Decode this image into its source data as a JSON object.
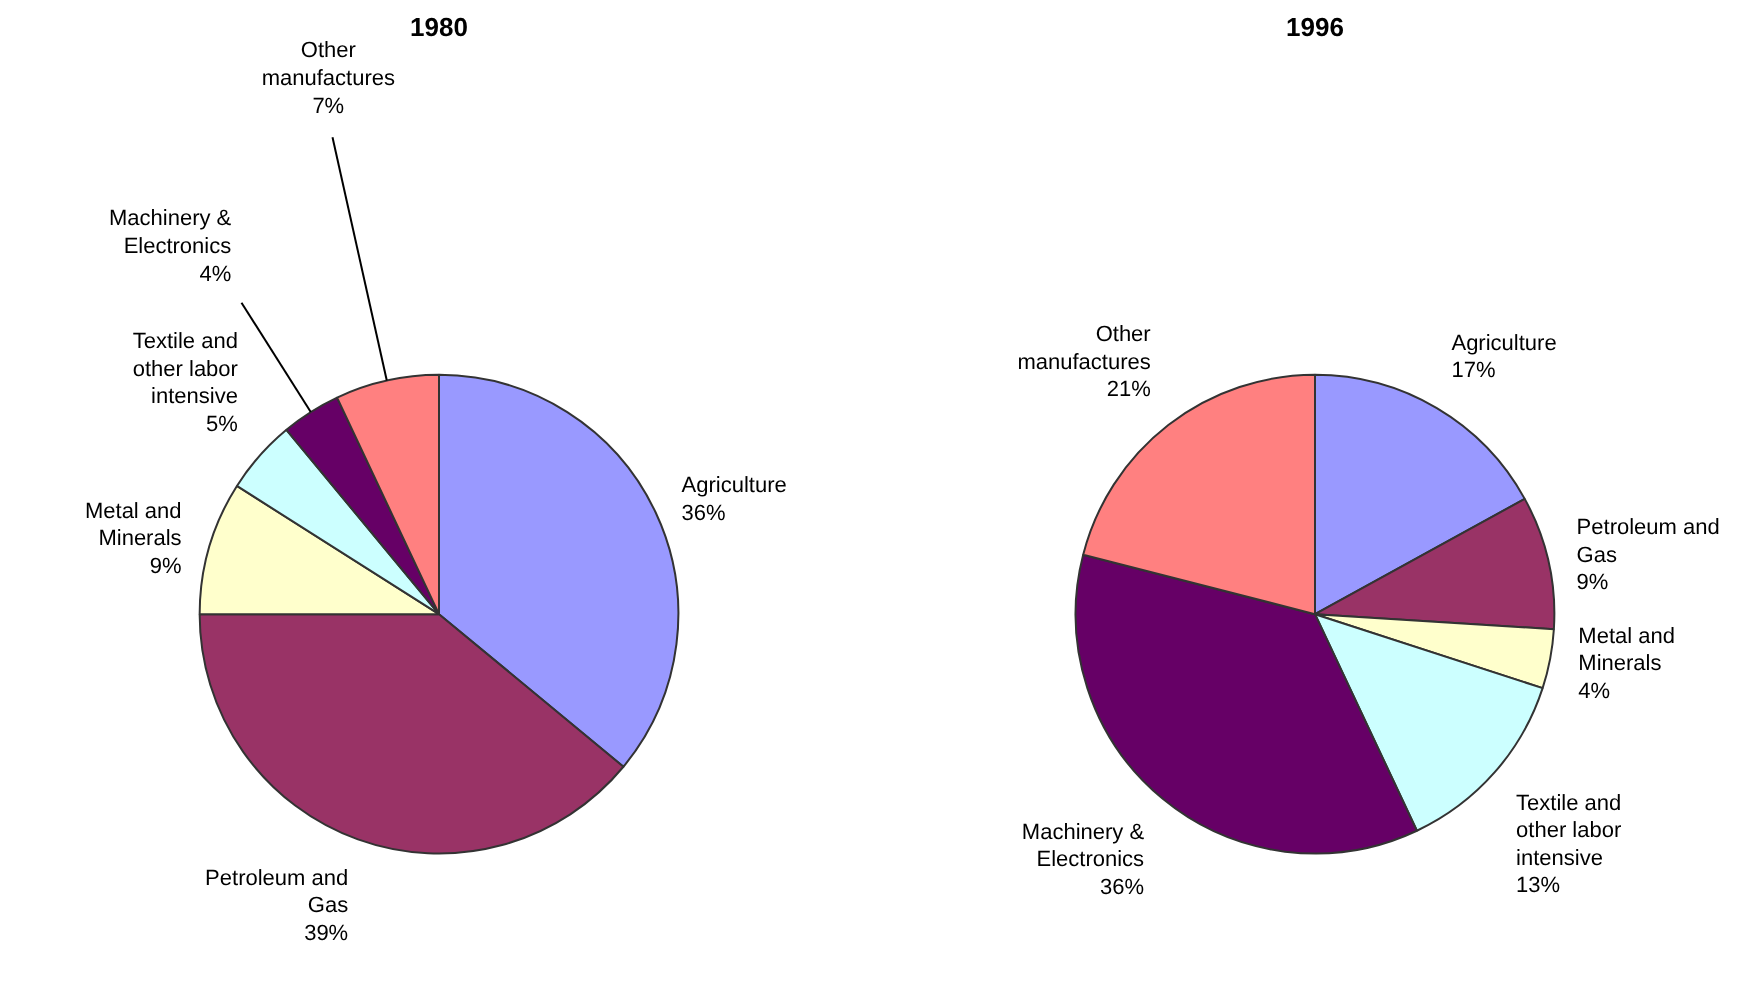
{
  "chart_data": [
    {
      "type": "pie",
      "title": "1980",
      "categories": [
        "Agriculture",
        "Petroleum and Gas",
        "Metal and Minerals",
        "Textile and other labor intensive",
        "Machinery & Electronics",
        "Other manufactures"
      ],
      "values": [
        36,
        39,
        9,
        5,
        4,
        7
      ],
      "value_labels": [
        "36%",
        "39%",
        "9%",
        "5%",
        "4%",
        "7%"
      ],
      "colors": [
        "#9999ff",
        "#993366",
        "#ffffcc",
        "#ccffff",
        "#660066",
        "#ff8080"
      ]
    },
    {
      "type": "pie",
      "title": "1996",
      "categories": [
        "Agriculture",
        "Petroleum and Gas",
        "Metal and Minerals",
        "Textile and other labor intensive",
        "Machinery & Electronics",
        "Other manufactures"
      ],
      "values": [
        17,
        9,
        4,
        13,
        36,
        21
      ],
      "value_labels": [
        "17%",
        "9%",
        "4%",
        "13%",
        "36%",
        "21%"
      ],
      "colors": [
        "#9999ff",
        "#993366",
        "#ffffcc",
        "#ccffff",
        "#660066",
        "#ff8080"
      ]
    }
  ]
}
